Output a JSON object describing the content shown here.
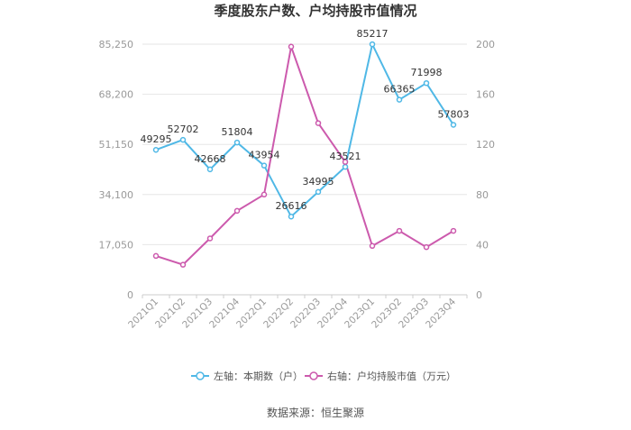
{
  "chart_data": {
    "type": "line",
    "title": "季度股东户数、户均持股市值情况",
    "categories": [
      "2021Q1",
      "2021Q2",
      "2021Q3",
      "2021Q4",
      "2022Q1",
      "2022Q2",
      "2022Q3",
      "2022Q4",
      "2023Q1",
      "2023Q2",
      "2023Q3",
      "2023Q4"
    ],
    "left_axis": {
      "ticks": [
        "0",
        "17,050",
        "34,100",
        "51,150",
        "68,200",
        "85,250"
      ],
      "ylim": [
        0,
        85250
      ]
    },
    "right_axis": {
      "ticks": [
        "0",
        "40",
        "80",
        "120",
        "160",
        "200"
      ],
      "ylim": [
        0,
        200
      ]
    },
    "grid": true,
    "legend_position": "bottom",
    "series": [
      {
        "name": "左轴：本期数（户）",
        "axis": "left",
        "color": "#4fb8e6",
        "values": [
          49295,
          52702,
          42668,
          51804,
          43954,
          26616,
          34995,
          43521,
          85217,
          66365,
          71998,
          57803
        ],
        "labels": [
          "49295",
          "52702",
          "42668",
          "51804",
          "43954",
          "26616",
          "34995",
          "43521",
          "85217",
          "66365",
          "71998",
          "57803"
        ]
      },
      {
        "name": "右轴：户均持股市值（万元）",
        "axis": "right",
        "color": "#cc5aad",
        "values": [
          31,
          24,
          45,
          67,
          80,
          198,
          137,
          106,
          39,
          51,
          38,
          51
        ]
      }
    ],
    "source": "数据来源：恒生聚源"
  }
}
